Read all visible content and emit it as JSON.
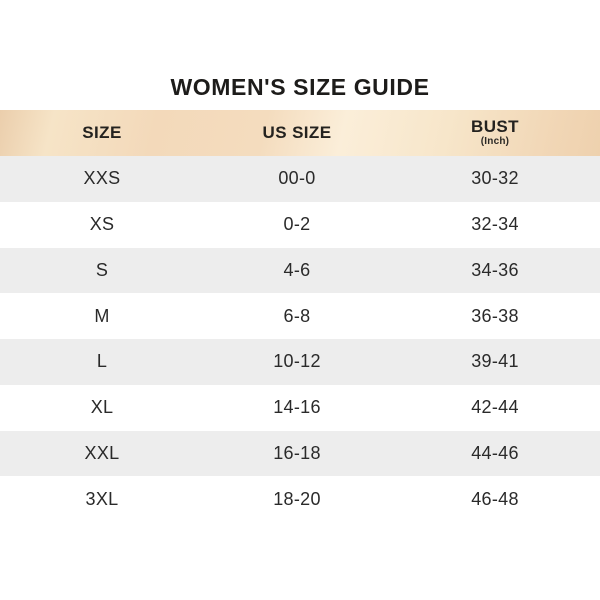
{
  "title": "WOMEN'S SIZE GUIDE",
  "colors": {
    "header_peach_dark": "#ebceac",
    "header_peach_light": "#fbeed9",
    "row_alt_gray": "#ededed",
    "row_white": "#ffffff",
    "text_dark": "#1d1c1a"
  },
  "table": {
    "headers": [
      {
        "label": "SIZE",
        "sublabel": ""
      },
      {
        "label": "US SIZE",
        "sublabel": ""
      },
      {
        "label": "BUST",
        "sublabel": "(Inch)"
      }
    ],
    "rows": [
      {
        "size": "XXS",
        "us": "00-0",
        "bust": "30-32"
      },
      {
        "size": "XS",
        "us": "0-2",
        "bust": "32-34"
      },
      {
        "size": "S",
        "us": "4-6",
        "bust": "34-36"
      },
      {
        "size": "M",
        "us": "6-8",
        "bust": "36-38"
      },
      {
        "size": "L",
        "us": "10-12",
        "bust": "39-41"
      },
      {
        "size": "XL",
        "us": "14-16",
        "bust": "42-44"
      },
      {
        "size": "XXL",
        "us": "16-18",
        "bust": "44-46"
      },
      {
        "size": "3XL",
        "us": "18-20",
        "bust": "46-48"
      }
    ]
  },
  "chart_data": {
    "type": "table",
    "title": "WOMEN'S SIZE GUIDE",
    "columns": [
      "SIZE",
      "US SIZE",
      "BUST (Inch)"
    ],
    "rows": [
      [
        "XXS",
        "00-0",
        "30-32"
      ],
      [
        "XS",
        "0-2",
        "32-34"
      ],
      [
        "S",
        "4-6",
        "34-36"
      ],
      [
        "M",
        "6-8",
        "36-38"
      ],
      [
        "L",
        "10-12",
        "39-41"
      ],
      [
        "XL",
        "14-16",
        "42-44"
      ],
      [
        "XXL",
        "16-18",
        "44-46"
      ],
      [
        "3XL",
        "18-20",
        "46-48"
      ]
    ]
  }
}
